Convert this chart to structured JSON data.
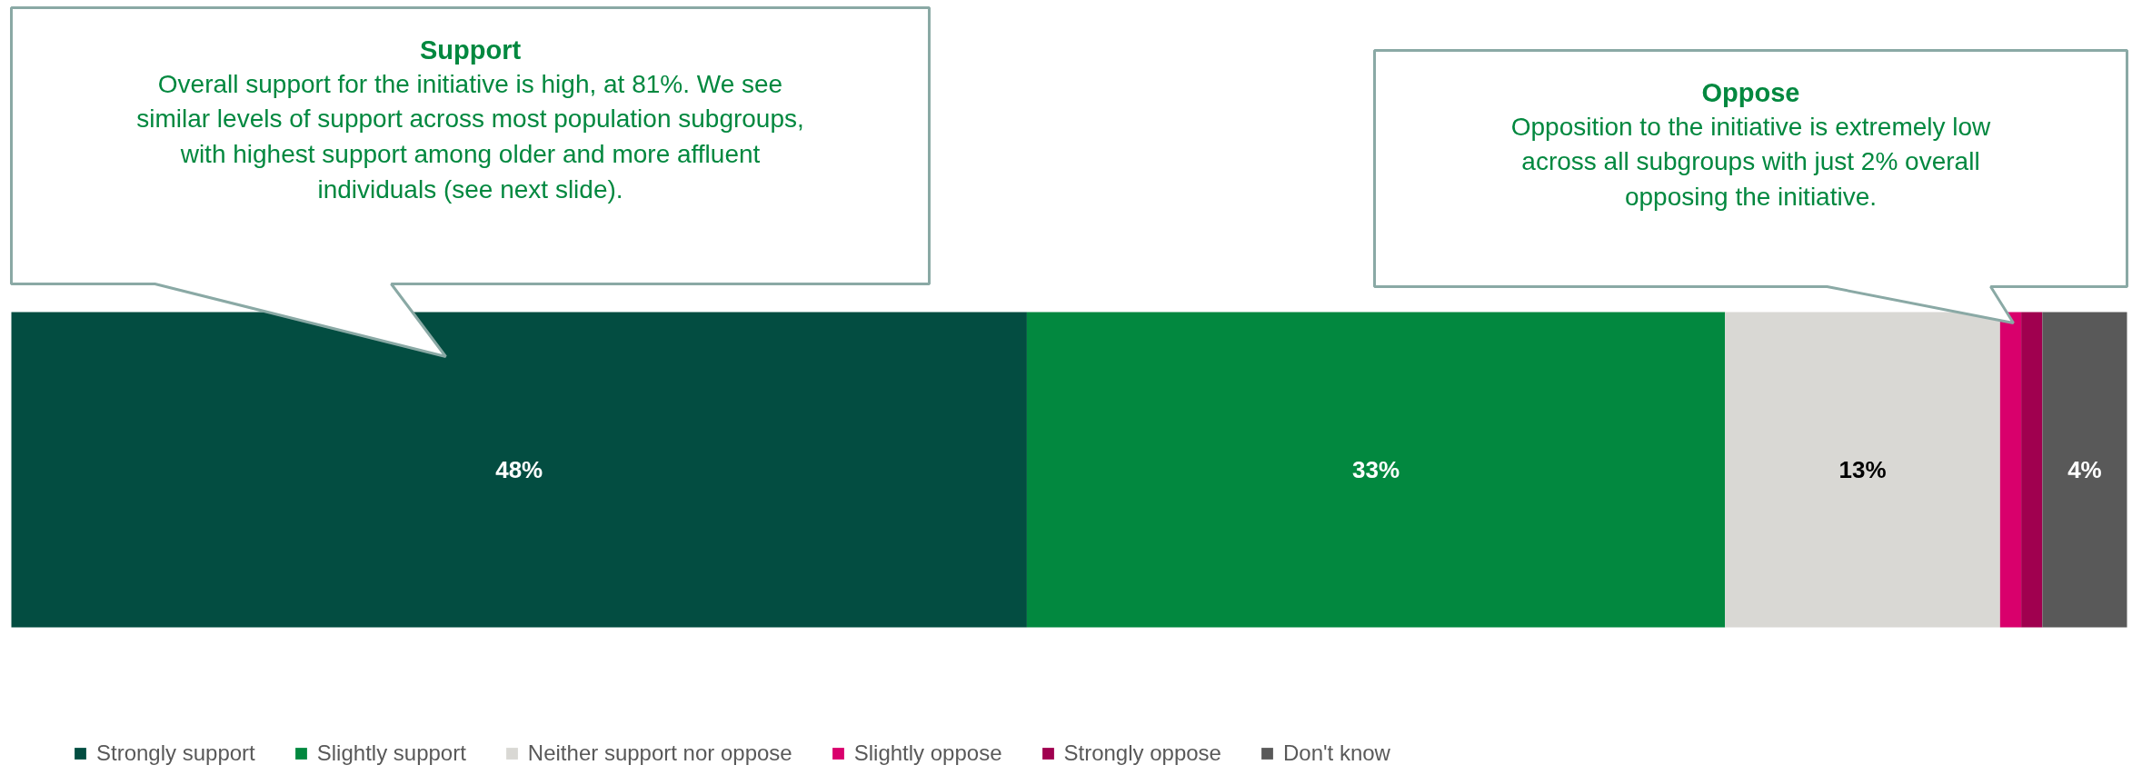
{
  "chart_data": {
    "type": "bar",
    "orientation": "horizontal",
    "stacked": true,
    "categories": [
      null
    ],
    "series": [
      {
        "name": "Strongly support",
        "color": "#034d41",
        "values": [
          48
        ],
        "value_labels": [
          "48%"
        ]
      },
      {
        "name": "Slightly support",
        "color": "#02883f",
        "values": [
          33
        ],
        "value_labels": [
          "33%"
        ]
      },
      {
        "name": "Neither support nor oppose",
        "color": "#d9d8d4",
        "values": [
          13
        ],
        "value_labels": [
          "13%"
        ]
      },
      {
        "name": "Slightly oppose",
        "color": "#d9006c",
        "values": [
          1
        ],
        "value_labels": [
          null
        ]
      },
      {
        "name": "Strongly oppose",
        "color": "#a0004f",
        "values": [
          1
        ],
        "value_labels": [
          null
        ]
      },
      {
        "name": "Don't know",
        "color": "#595959",
        "values": [
          4
        ],
        "value_labels": [
          "4%"
        ]
      }
    ],
    "legend": "bottom",
    "annotations": [
      "Support",
      "Overall support for the initiative is high, at 81%. We see similar levels of support across most population subgroups, with highest support among older and more affluent individuals (see next slide).",
      "Oppose",
      "Opposition to the initiative is extremely low across all subgroups with just 2% overall opposing the initiative."
    ]
  }
}
